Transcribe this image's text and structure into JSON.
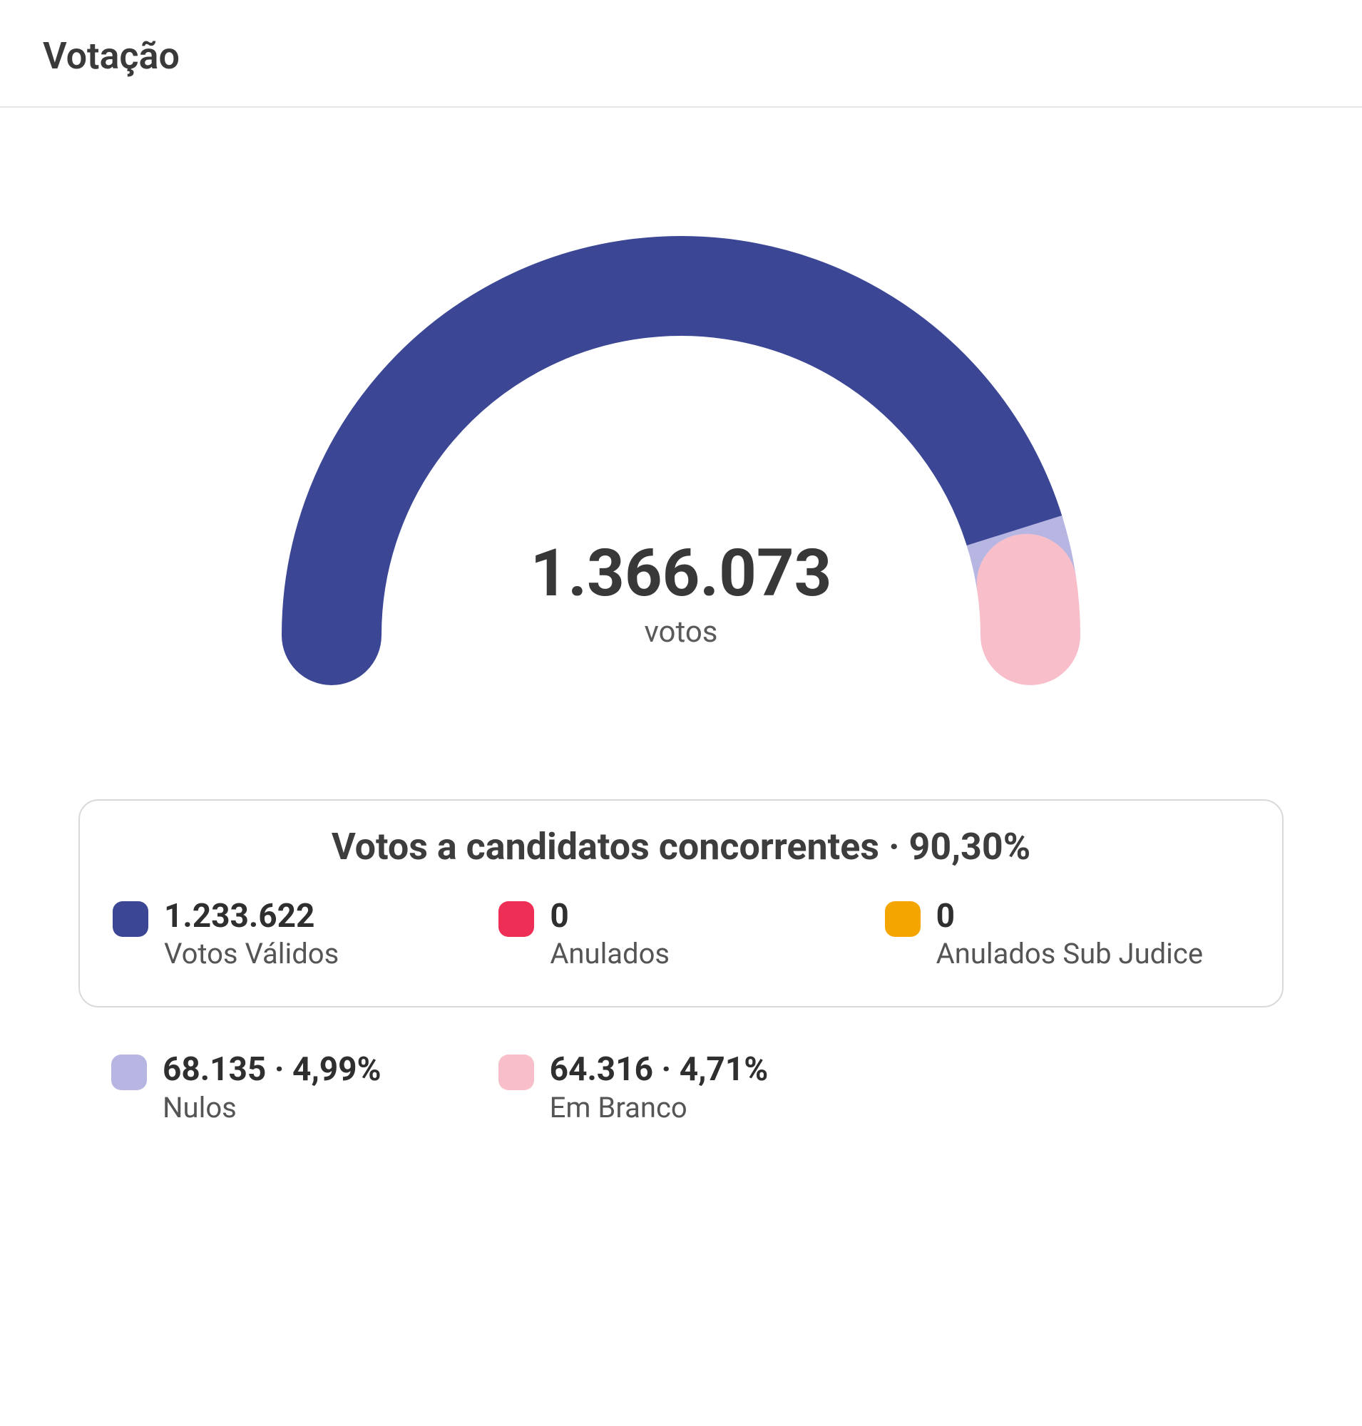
{
  "header": {
    "title": "Votação"
  },
  "gauge": {
    "total_value": "1.366.073",
    "total_label": "votos",
    "segments": [
      {
        "key": "validos",
        "percent": 90.3,
        "color": "#3b4695"
      },
      {
        "key": "nulos",
        "percent": 4.99,
        "color": "#b7b6e3"
      },
      {
        "key": "em_branco",
        "percent": 4.71,
        "color": "#f8bfcb"
      }
    ],
    "stroke_width": 140,
    "background_color": "#ffffff"
  },
  "legend_panel": {
    "title": "Votos a candidatos concorrentes · 90,30%",
    "items": [
      {
        "color": "#3b4695",
        "value": "1.233.622",
        "label": "Votos Válidos"
      },
      {
        "color": "#ef2e55",
        "value": "0",
        "label": "Anulados"
      },
      {
        "color": "#f5a500",
        "value": "0",
        "label": "Anulados Sub Judice"
      }
    ]
  },
  "legend_lower": [
    {
      "color": "#b7b6e3",
      "value": "68.135 · 4,99%",
      "label": "Nulos"
    },
    {
      "color": "#f8bfcb",
      "value": "64.316 · 4,71%",
      "label": "Em Branco"
    }
  ],
  "colors": {
    "text_primary": "#383838",
    "text_secondary": "#555555",
    "border": "#d9d9d9"
  }
}
